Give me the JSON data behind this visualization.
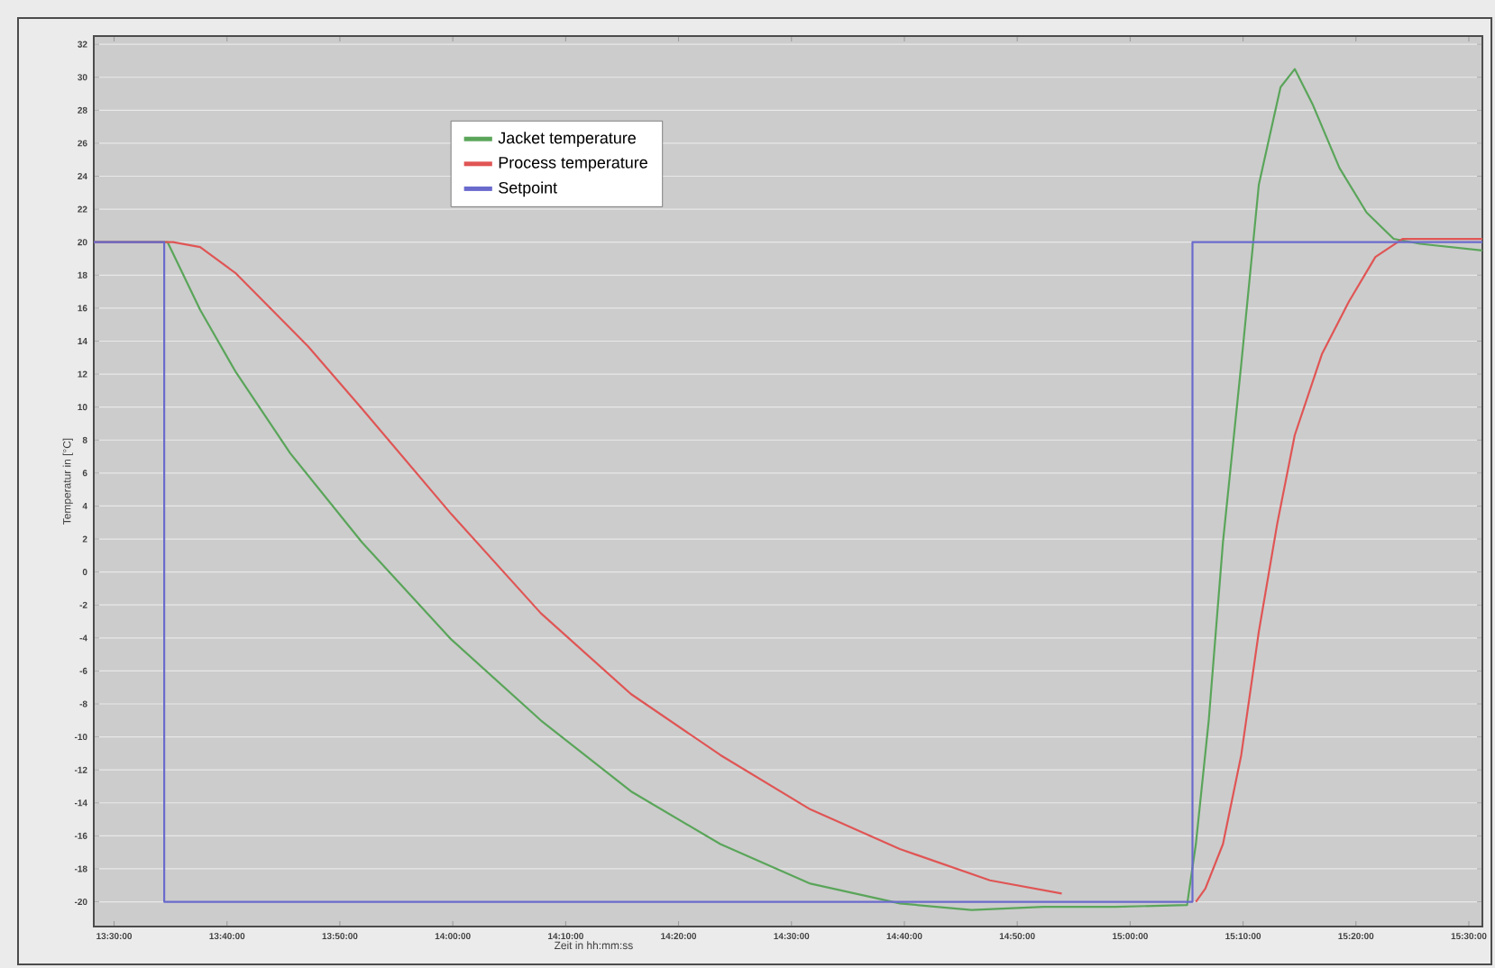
{
  "chart_data": {
    "type": "line",
    "xlabel": "Zeit in hh:mm:ss",
    "ylabel": "Temperatur in [°C]",
    "xlim": [
      13.47,
      15.52
    ],
    "ylim": [
      -21.5,
      32.5
    ],
    "xticks": [
      {
        "value": 13.5,
        "label": "13:30:00"
      },
      {
        "value": 13.6667,
        "label": "13:40:00"
      },
      {
        "value": 13.8333,
        "label": "13:50:00"
      },
      {
        "value": 14.0,
        "label": "14:00:00"
      },
      {
        "value": 14.1667,
        "label": "14:10:00"
      },
      {
        "value": 14.3333,
        "label": "14:20:00"
      },
      {
        "value": 14.5,
        "label": "14:30:00"
      },
      {
        "value": 14.6667,
        "label": "14:40:00"
      },
      {
        "value": 14.8333,
        "label": "14:50:00"
      },
      {
        "value": 15.0,
        "label": "15:00:00"
      },
      {
        "value": 15.1667,
        "label": "15:10:00"
      },
      {
        "value": 15.3333,
        "label": "15:20:00"
      },
      {
        "value": 15.5,
        "label": "15:30:00"
      }
    ],
    "yticks": [
      -20,
      -18,
      -16,
      -14,
      -12,
      -10,
      -8,
      -6,
      -4,
      -2,
      0,
      2,
      4,
      6,
      8,
      10,
      12,
      14,
      16,
      18,
      20,
      22,
      24,
      26,
      28,
      30,
      32
    ],
    "grid": "y",
    "legend": "top",
    "marker": "none",
    "line_style": "solid",
    "series": [
      {
        "name": "Jacket temperature",
        "color": "#5aa55a",
        "x": [
          13.47,
          13.579,
          13.627,
          13.68,
          13.76,
          13.866,
          13.998,
          14.13,
          14.263,
          14.395,
          14.528,
          14.66,
          14.766,
          14.872,
          14.978,
          15.084,
          15.097,
          15.116,
          15.137,
          15.164,
          15.19,
          15.222,
          15.243,
          15.27,
          15.309,
          15.349,
          15.389,
          15.428,
          15.52
        ],
        "values": [
          20,
          20,
          15.9,
          12.1,
          7.2,
          1.8,
          -4.1,
          -9.0,
          -13.3,
          -16.5,
          -18.9,
          -20.1,
          -20.5,
          -20.3,
          -20.3,
          -20.2,
          -16.5,
          -9.0,
          1.8,
          12.6,
          23.5,
          29.4,
          30.5,
          28.3,
          24.5,
          21.8,
          20.2,
          19.9,
          19.5
        ]
      },
      {
        "name": "Process temperature",
        "color": "#e05555",
        "x": [
          13.47,
          13.587,
          13.627,
          13.68,
          13.786,
          13.866,
          13.998,
          14.13,
          14.263,
          14.395,
          14.528,
          14.66,
          14.793,
          14.899,
          14.95,
          15.097,
          15.111,
          15.137,
          15.164,
          15.19,
          15.217,
          15.243,
          15.283,
          15.323,
          15.362,
          15.402,
          15.52
        ],
        "values": [
          20,
          20,
          19.7,
          18.1,
          13.7,
          9.9,
          3.5,
          -2.5,
          -7.4,
          -11.1,
          -14.4,
          -16.8,
          -18.7,
          -19.5,
          null,
          -20,
          -19.2,
          -16.5,
          -11.1,
          -3.6,
          2.9,
          8.3,
          13.2,
          16.4,
          19.1,
          20.2,
          20.2
        ]
      },
      {
        "name": "Setpoint",
        "color": "#6a6acd",
        "x": [
          13.47,
          13.574,
          13.574,
          15.092,
          15.092,
          15.52
        ],
        "values": [
          20,
          20,
          -20,
          -20,
          20,
          20
        ]
      }
    ]
  }
}
